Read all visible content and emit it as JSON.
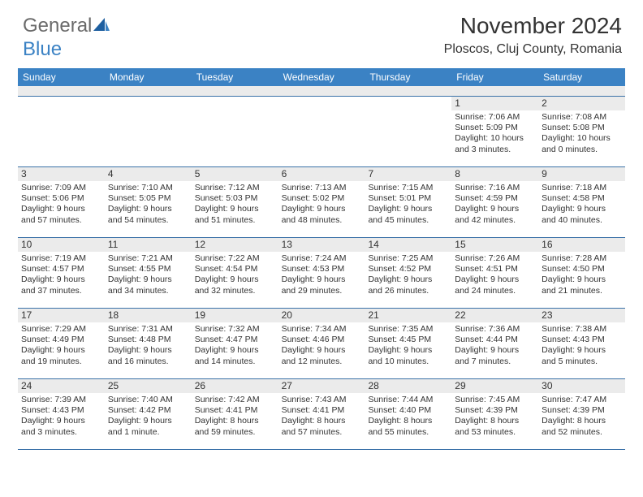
{
  "logo": {
    "part1": "General",
    "part2": "Blue"
  },
  "header": {
    "title": "November 2024",
    "location": "Ploscos, Cluj County, Romania"
  },
  "colors": {
    "header_bg": "#3b82c4",
    "stripe": "#ebebeb",
    "border": "#3b72a8",
    "text": "#333333"
  },
  "dayNames": [
    "Sunday",
    "Monday",
    "Tuesday",
    "Wednesday",
    "Thursday",
    "Friday",
    "Saturday"
  ],
  "weeks": [
    [
      null,
      null,
      null,
      null,
      null,
      {
        "n": "1",
        "sr": "Sunrise: 7:06 AM",
        "ss": "Sunset: 5:09 PM",
        "dl1": "Daylight: 10 hours",
        "dl2": "and 3 minutes."
      },
      {
        "n": "2",
        "sr": "Sunrise: 7:08 AM",
        "ss": "Sunset: 5:08 PM",
        "dl1": "Daylight: 10 hours",
        "dl2": "and 0 minutes."
      }
    ],
    [
      {
        "n": "3",
        "sr": "Sunrise: 7:09 AM",
        "ss": "Sunset: 5:06 PM",
        "dl1": "Daylight: 9 hours",
        "dl2": "and 57 minutes."
      },
      {
        "n": "4",
        "sr": "Sunrise: 7:10 AM",
        "ss": "Sunset: 5:05 PM",
        "dl1": "Daylight: 9 hours",
        "dl2": "and 54 minutes."
      },
      {
        "n": "5",
        "sr": "Sunrise: 7:12 AM",
        "ss": "Sunset: 5:03 PM",
        "dl1": "Daylight: 9 hours",
        "dl2": "and 51 minutes."
      },
      {
        "n": "6",
        "sr": "Sunrise: 7:13 AM",
        "ss": "Sunset: 5:02 PM",
        "dl1": "Daylight: 9 hours",
        "dl2": "and 48 minutes."
      },
      {
        "n": "7",
        "sr": "Sunrise: 7:15 AM",
        "ss": "Sunset: 5:01 PM",
        "dl1": "Daylight: 9 hours",
        "dl2": "and 45 minutes."
      },
      {
        "n": "8",
        "sr": "Sunrise: 7:16 AM",
        "ss": "Sunset: 4:59 PM",
        "dl1": "Daylight: 9 hours",
        "dl2": "and 42 minutes."
      },
      {
        "n": "9",
        "sr": "Sunrise: 7:18 AM",
        "ss": "Sunset: 4:58 PM",
        "dl1": "Daylight: 9 hours",
        "dl2": "and 40 minutes."
      }
    ],
    [
      {
        "n": "10",
        "sr": "Sunrise: 7:19 AM",
        "ss": "Sunset: 4:57 PM",
        "dl1": "Daylight: 9 hours",
        "dl2": "and 37 minutes."
      },
      {
        "n": "11",
        "sr": "Sunrise: 7:21 AM",
        "ss": "Sunset: 4:55 PM",
        "dl1": "Daylight: 9 hours",
        "dl2": "and 34 minutes."
      },
      {
        "n": "12",
        "sr": "Sunrise: 7:22 AM",
        "ss": "Sunset: 4:54 PM",
        "dl1": "Daylight: 9 hours",
        "dl2": "and 32 minutes."
      },
      {
        "n": "13",
        "sr": "Sunrise: 7:24 AM",
        "ss": "Sunset: 4:53 PM",
        "dl1": "Daylight: 9 hours",
        "dl2": "and 29 minutes."
      },
      {
        "n": "14",
        "sr": "Sunrise: 7:25 AM",
        "ss": "Sunset: 4:52 PM",
        "dl1": "Daylight: 9 hours",
        "dl2": "and 26 minutes."
      },
      {
        "n": "15",
        "sr": "Sunrise: 7:26 AM",
        "ss": "Sunset: 4:51 PM",
        "dl1": "Daylight: 9 hours",
        "dl2": "and 24 minutes."
      },
      {
        "n": "16",
        "sr": "Sunrise: 7:28 AM",
        "ss": "Sunset: 4:50 PM",
        "dl1": "Daylight: 9 hours",
        "dl2": "and 21 minutes."
      }
    ],
    [
      {
        "n": "17",
        "sr": "Sunrise: 7:29 AM",
        "ss": "Sunset: 4:49 PM",
        "dl1": "Daylight: 9 hours",
        "dl2": "and 19 minutes."
      },
      {
        "n": "18",
        "sr": "Sunrise: 7:31 AM",
        "ss": "Sunset: 4:48 PM",
        "dl1": "Daylight: 9 hours",
        "dl2": "and 16 minutes."
      },
      {
        "n": "19",
        "sr": "Sunrise: 7:32 AM",
        "ss": "Sunset: 4:47 PM",
        "dl1": "Daylight: 9 hours",
        "dl2": "and 14 minutes."
      },
      {
        "n": "20",
        "sr": "Sunrise: 7:34 AM",
        "ss": "Sunset: 4:46 PM",
        "dl1": "Daylight: 9 hours",
        "dl2": "and 12 minutes."
      },
      {
        "n": "21",
        "sr": "Sunrise: 7:35 AM",
        "ss": "Sunset: 4:45 PM",
        "dl1": "Daylight: 9 hours",
        "dl2": "and 10 minutes."
      },
      {
        "n": "22",
        "sr": "Sunrise: 7:36 AM",
        "ss": "Sunset: 4:44 PM",
        "dl1": "Daylight: 9 hours",
        "dl2": "and 7 minutes."
      },
      {
        "n": "23",
        "sr": "Sunrise: 7:38 AM",
        "ss": "Sunset: 4:43 PM",
        "dl1": "Daylight: 9 hours",
        "dl2": "and 5 minutes."
      }
    ],
    [
      {
        "n": "24",
        "sr": "Sunrise: 7:39 AM",
        "ss": "Sunset: 4:43 PM",
        "dl1": "Daylight: 9 hours",
        "dl2": "and 3 minutes."
      },
      {
        "n": "25",
        "sr": "Sunrise: 7:40 AM",
        "ss": "Sunset: 4:42 PM",
        "dl1": "Daylight: 9 hours",
        "dl2": "and 1 minute."
      },
      {
        "n": "26",
        "sr": "Sunrise: 7:42 AM",
        "ss": "Sunset: 4:41 PM",
        "dl1": "Daylight: 8 hours",
        "dl2": "and 59 minutes."
      },
      {
        "n": "27",
        "sr": "Sunrise: 7:43 AM",
        "ss": "Sunset: 4:41 PM",
        "dl1": "Daylight: 8 hours",
        "dl2": "and 57 minutes."
      },
      {
        "n": "28",
        "sr": "Sunrise: 7:44 AM",
        "ss": "Sunset: 4:40 PM",
        "dl1": "Daylight: 8 hours",
        "dl2": "and 55 minutes."
      },
      {
        "n": "29",
        "sr": "Sunrise: 7:45 AM",
        "ss": "Sunset: 4:39 PM",
        "dl1": "Daylight: 8 hours",
        "dl2": "and 53 minutes."
      },
      {
        "n": "30",
        "sr": "Sunrise: 7:47 AM",
        "ss": "Sunset: 4:39 PM",
        "dl1": "Daylight: 8 hours",
        "dl2": "and 52 minutes."
      }
    ]
  ]
}
